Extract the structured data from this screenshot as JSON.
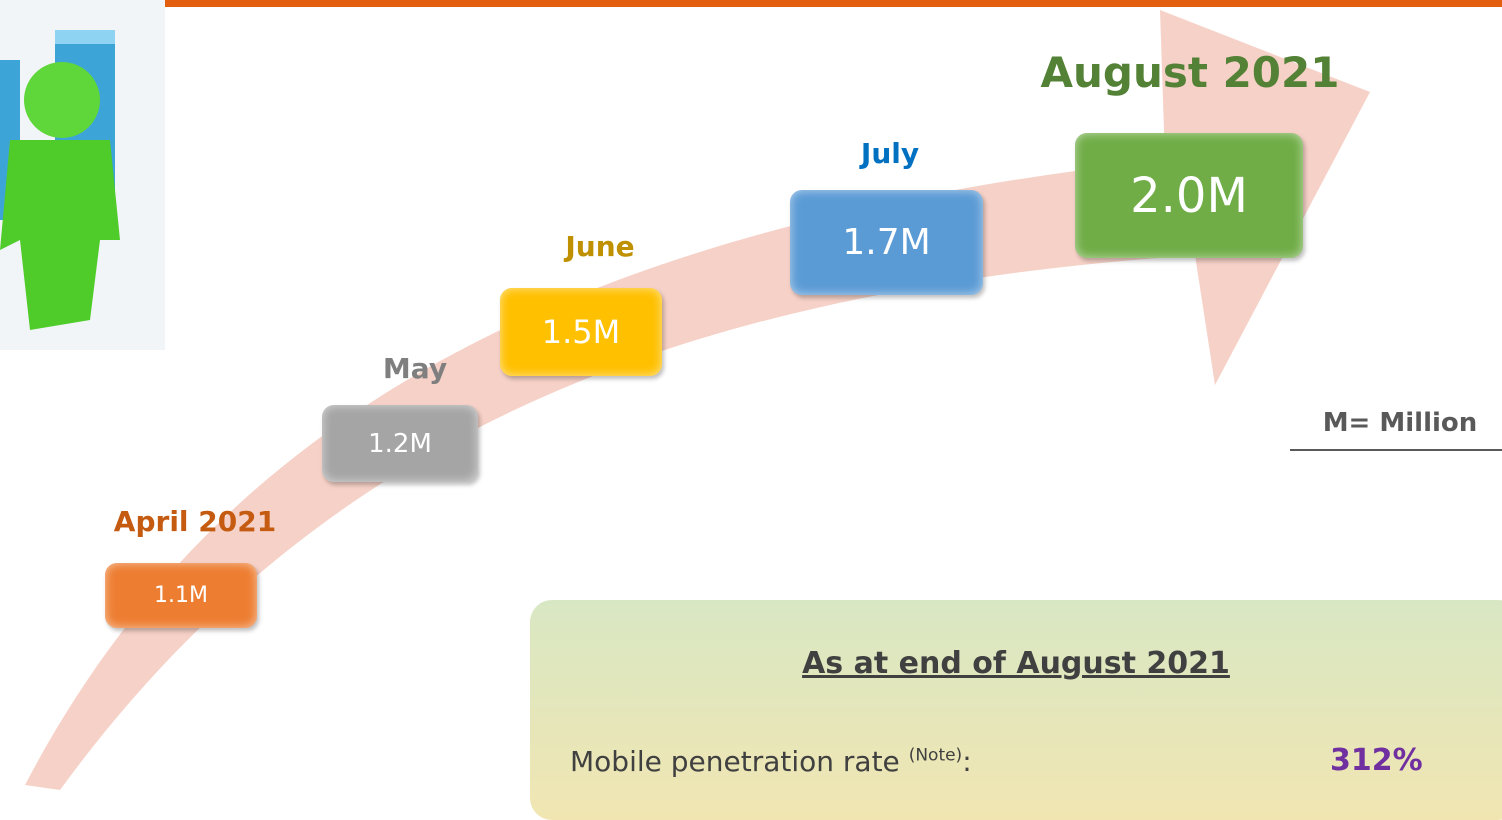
{
  "steps": [
    {
      "label": "April 2021",
      "value": "1.1M"
    },
    {
      "label": "May",
      "value": "1.2M"
    },
    {
      "label": "June",
      "value": "1.5M"
    },
    {
      "label": "July",
      "value": "1.7M"
    },
    {
      "label": "August 2021",
      "value": "2.0M"
    }
  ],
  "note": "M= Million",
  "summary": {
    "title": "As at end of August 2021",
    "rows": [
      {
        "label": "Mobile penetration rate",
        "note": "(Note)",
        "suffix": ":",
        "value": "312%"
      }
    ]
  }
}
